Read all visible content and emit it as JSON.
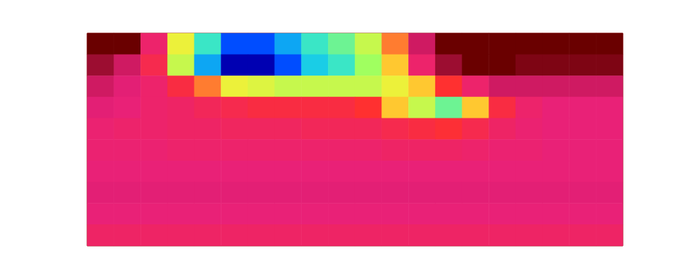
{
  "chart_data": {
    "type": "heatmap",
    "cells": [
      [
        1.0,
        1.0,
        0.85,
        0.6,
        0.4,
        0.2,
        0.2,
        0.3,
        0.4,
        0.45,
        0.55,
        0.7,
        0.9,
        1.0,
        1.0,
        1.0,
        1.0,
        1.0,
        1.0,
        1.0
      ],
      [
        0.95,
        0.9,
        0.8,
        0.55,
        0.3,
        0.05,
        0.05,
        0.2,
        0.35,
        0.4,
        0.5,
        0.65,
        0.85,
        0.95,
        1.0,
        1.0,
        0.98,
        0.98,
        0.98,
        0.98
      ],
      [
        0.9,
        0.88,
        0.85,
        0.78,
        0.7,
        0.6,
        0.58,
        0.55,
        0.55,
        0.55,
        0.55,
        0.6,
        0.65,
        0.75,
        0.85,
        0.9,
        0.9,
        0.9,
        0.9,
        0.9
      ],
      [
        0.88,
        0.87,
        0.85,
        0.84,
        0.82,
        0.8,
        0.78,
        0.78,
        0.78,
        0.78,
        0.75,
        0.65,
        0.55,
        0.45,
        0.65,
        0.78,
        0.85,
        0.87,
        0.87,
        0.87
      ],
      [
        0.86,
        0.85,
        0.85,
        0.84,
        0.84,
        0.83,
        0.83,
        0.83,
        0.82,
        0.82,
        0.82,
        0.8,
        0.78,
        0.76,
        0.8,
        0.84,
        0.86,
        0.87,
        0.87,
        0.87
      ],
      [
        0.86,
        0.86,
        0.86,
        0.85,
        0.85,
        0.85,
        0.85,
        0.85,
        0.85,
        0.85,
        0.85,
        0.84,
        0.84,
        0.84,
        0.85,
        0.86,
        0.86,
        0.87,
        0.87,
        0.87
      ],
      [
        0.87,
        0.87,
        0.87,
        0.87,
        0.87,
        0.87,
        0.87,
        0.87,
        0.87,
        0.87,
        0.87,
        0.87,
        0.87,
        0.87,
        0.87,
        0.87,
        0.87,
        0.87,
        0.87,
        0.87
      ],
      [
        0.88,
        0.88,
        0.88,
        0.88,
        0.88,
        0.88,
        0.88,
        0.88,
        0.88,
        0.88,
        0.88,
        0.88,
        0.88,
        0.88,
        0.88,
        0.88,
        0.88,
        0.88,
        0.88,
        0.88
      ],
      [
        0.87,
        0.87,
        0.87,
        0.87,
        0.87,
        0.87,
        0.87,
        0.87,
        0.87,
        0.87,
        0.87,
        0.87,
        0.87,
        0.87,
        0.87,
        0.87,
        0.87,
        0.87,
        0.87,
        0.87
      ],
      [
        0.84,
        0.84,
        0.84,
        0.84,
        0.84,
        0.84,
        0.84,
        0.84,
        0.84,
        0.84,
        0.84,
        0.84,
        0.84,
        0.84,
        0.84,
        0.84,
        0.84,
        0.84,
        0.84,
        0.84
      ]
    ],
    "color_range": [
      0,
      1
    ],
    "tick_labels": false
  }
}
